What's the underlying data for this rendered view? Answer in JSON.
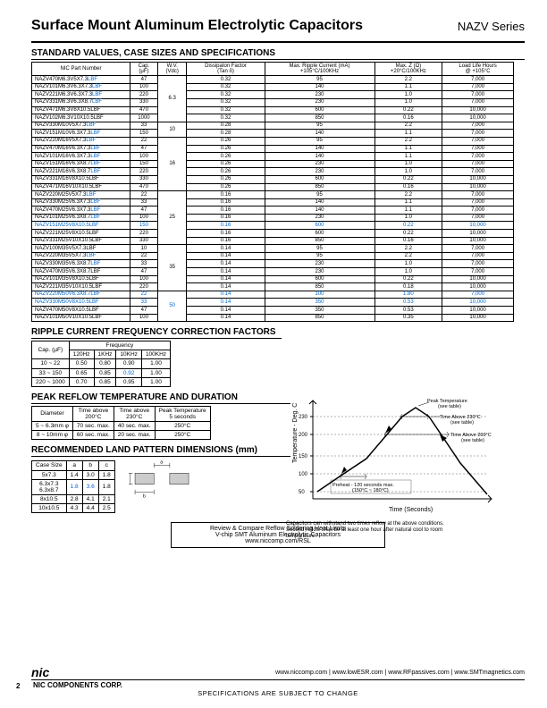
{
  "title": "Surface Mount Aluminum Electrolytic Capacitors",
  "series": "NAZV Series",
  "sections": {
    "standard": "STANDARD VALUES, CASE SIZES AND SPECIFICATIONS",
    "ripple": "RIPPLE CURRENT FREQUENCY CORRECTION FACTORS",
    "peak": "PEAK REFLOW TEMPERATURE AND DURATION",
    "land": "RECOMMENDED LAND PATTERN DIMENSIONS (mm)"
  },
  "main_table": {
    "headers": [
      "NIC Part Number",
      "Cap.\n(μF)",
      "W.V.\n(Vdc)",
      "Dissipaton Factor\n(Tan δ)",
      "Max. Ripple Current (mA)\n+105°C/100KHz",
      "Max. Z (Ω)\n+20°C/100KHz",
      "Load Life Hours\n@ +105°C"
    ],
    "rows": [
      {
        "p": "NAZV470M6.3V5X7.3",
        "s": "LBF",
        "c": [
          "47",
          "6.3",
          "0.32",
          "95",
          "2.2",
          "7,000"
        ],
        "blue": false
      },
      {
        "p": "NAZV101M6.3V6.3X7.3",
        "s": "LBF",
        "c": [
          "100",
          "",
          "0.32",
          "140",
          "1.1",
          "7,000"
        ],
        "blue": false
      },
      {
        "p": "NAZV221M6.3V6.3X7.3",
        "s": "LBF",
        "c": [
          "220",
          "",
          "0.32",
          "230",
          "1.0",
          "7,000"
        ],
        "blue": false
      },
      {
        "p": "NAZV331M6.3V6.3X8.7",
        "s": "LBF",
        "c": [
          "330",
          "",
          "0.32",
          "230",
          "1.0",
          "7,000"
        ],
        "blue": false
      },
      {
        "p": "NAZV471M6.3V8X10.5LBF",
        "s": "",
        "c": [
          "470",
          "",
          "0.32",
          "600",
          "0.22",
          "10,000"
        ],
        "blue": false
      },
      {
        "p": "NAZV102M6.3V10X10.5LBF",
        "s": "",
        "c": [
          "1000",
          "",
          "0.32",
          "850",
          "0.16",
          "10,000"
        ],
        "blue": false
      },
      {
        "p": "NAZV330M10V5X7.3",
        "s": "LBF",
        "c": [
          "33",
          "10",
          "0.28",
          "95",
          "2.2",
          "7,000"
        ],
        "blue": false
      },
      {
        "p": "NAZV151M10V6.3X7.3",
        "s": "LBF",
        "c": [
          "150",
          "",
          "0.28",
          "140",
          "1.1",
          "7,000"
        ],
        "blue": false
      },
      {
        "p": "NAZV220M16V5X7.3",
        "s": "LBF",
        "c": [
          "22",
          "16",
          "0.26",
          "95",
          "2.2",
          "7,000"
        ],
        "blue": false
      },
      {
        "p": "NAZV470M16V6.3X7.3",
        "s": "LBF",
        "c": [
          "47",
          "",
          "0.26",
          "140",
          "1.1",
          "7,000"
        ],
        "blue": false
      },
      {
        "p": "NAZV101M16V6.3X7.3",
        "s": "LBF",
        "c": [
          "100",
          "",
          "0.26",
          "140",
          "1.1",
          "7,000"
        ],
        "blue": false
      },
      {
        "p": "NAZV151M16V6.3X8.7",
        "s": "LBF",
        "c": [
          "150",
          "",
          "0.26",
          "230",
          "1.0",
          "7,000"
        ],
        "blue": false
      },
      {
        "p": "NAZV221M16V6.3X8.7",
        "s": "LBF",
        "c": [
          "220",
          "",
          "0.26",
          "230",
          "1.0",
          "7,000"
        ],
        "blue": false
      },
      {
        "p": "NAZV331M16V8X10.5LBF",
        "s": "",
        "c": [
          "330",
          "",
          "0.26",
          "600",
          "0.22",
          "10,000"
        ],
        "blue": false
      },
      {
        "p": "NAZV471M16V10X10.5LBF",
        "s": "",
        "c": [
          "470",
          "",
          "0.26",
          "850",
          "0.16",
          "10,000"
        ],
        "blue": false
      },
      {
        "p": "NAZV220M25V5X7.3",
        "s": "LBF",
        "c": [
          "22",
          "25",
          "0.16",
          "95",
          "2.2",
          "7,000"
        ],
        "blue": false
      },
      {
        "p": "NAZV330M25V6.3X7.3",
        "s": "LBF",
        "c": [
          "33",
          "",
          "0.16",
          "140",
          "1.1",
          "7,000"
        ],
        "blue": false
      },
      {
        "p": "NAZV470M25V6.3X7.3",
        "s": "LBF",
        "c": [
          "47",
          "",
          "0.16",
          "140",
          "1.1",
          "7,000"
        ],
        "blue": false
      },
      {
        "p": "NAZV101M25V6.3X8.7",
        "s": "LBF",
        "c": [
          "100",
          "",
          "0.16",
          "230",
          "1.0",
          "7,000"
        ],
        "blue": false
      },
      {
        "p": "NAZV151M25V8X10.5",
        "s": "LBF",
        "c": [
          "150",
          "",
          "0.16",
          "600",
          "0.22",
          "10,000"
        ],
        "blue": true
      },
      {
        "p": "NAZV221M25V8X10.5LBF",
        "s": "",
        "c": [
          "220",
          "",
          "0.16",
          "600",
          "0.22",
          "10,000"
        ],
        "blue": false
      },
      {
        "p": "NAZV331M25V10X10.5LBF",
        "s": "",
        "c": [
          "330",
          "",
          "0.16",
          "850",
          "0.16",
          "10,000"
        ],
        "blue": false
      },
      {
        "p": "NAZV100M35V5X7.3LBF",
        "s": "",
        "c": [
          "10",
          "35",
          "0.14",
          "95",
          "2.2",
          "7,000"
        ],
        "blue": false
      },
      {
        "p": "NAZV220M35V5X7.3",
        "s": "LBF",
        "c": [
          "22",
          "",
          "0.14",
          "95",
          "2.2",
          "7,000"
        ],
        "blue": false
      },
      {
        "p": "NAZV330M35V6.3X8.7",
        "s": "LBF",
        "c": [
          "33",
          "",
          "0.14",
          "230",
          "1.0",
          "7,000"
        ],
        "blue": false
      },
      {
        "p": "NAZV470M35V6.3X8.7LBF",
        "s": "",
        "c": [
          "47",
          "",
          "0.14",
          "230",
          "1.0",
          "7,000"
        ],
        "blue": false
      },
      {
        "p": "NAZV101M35V8X10.5LBF",
        "s": "",
        "c": [
          "100",
          "",
          "0.14",
          "600",
          "0.22",
          "10,000"
        ],
        "blue": false
      },
      {
        "p": "NAZV221M35V10X10.5LBF",
        "s": "",
        "c": [
          "220",
          "",
          "0.14",
          "850",
          "0.18",
          "10,000"
        ],
        "blue": false
      },
      {
        "p": "NAZV220M50V6.3X8.7",
        "s": "LBF",
        "c": [
          "22",
          "50",
          "0.14",
          "100",
          "1.80",
          "7,000"
        ],
        "blue": true
      },
      {
        "p": "NAZV330M50V8X10.5",
        "s": "LBF",
        "c": [
          "33",
          "",
          "0.14",
          "350",
          "0.53",
          "10,000"
        ],
        "blue": true
      },
      {
        "p": "NAZV470M50V8X10.5LBF",
        "s": "",
        "c": [
          "47",
          "",
          "0.14",
          "350",
          "0.53",
          "10,000"
        ],
        "blue": false
      },
      {
        "p": "NAZV101M50V10X10.5LBF",
        "s": "",
        "c": [
          "100",
          "",
          "0.14",
          "850",
          "0.35",
          "10,000"
        ],
        "blue": false
      }
    ],
    "wv_spans": {
      "0": [
        "6.3",
        6
      ],
      "6": [
        "10",
        2
      ],
      "8": [
        "16",
        7
      ],
      "15": [
        "25",
        7
      ],
      "22": [
        "35",
        6
      ],
      "28": [
        "50",
        4
      ]
    }
  },
  "ripple_table": {
    "headers": [
      "Cap. (μF)",
      "120Hz",
      "1KHz",
      "10KHz",
      "100KHz"
    ],
    "freq_header": "Frequency",
    "rows": [
      [
        "10 ~ 22",
        "0.50",
        "0.80",
        "0.90",
        "1.00"
      ],
      [
        "33 ~ 150",
        "0.65",
        "0.85",
        "0.92",
        "1.00"
      ],
      [
        "220 ~ 1000",
        "0.70",
        "0.85",
        "0.95",
        "1.00"
      ]
    ],
    "blue_cell": {
      "row": 1,
      "col": 3
    }
  },
  "peak_table": {
    "headers": [
      "Diameter",
      "Time above\n200°C",
      "Time above\n230°C",
      "Peak Temperature\n5 seconds"
    ],
    "rows": [
      [
        "5 ~ 6.3mm φ",
        "70 sec. max.",
        "40 sec. max.",
        "250°C"
      ],
      [
        "8 ~ 10mm φ",
        "60 sec. max.",
        "20 sec. max.",
        "250°C"
      ]
    ]
  },
  "land_table": {
    "headers": [
      "Case Size",
      "a",
      "b",
      "c"
    ],
    "rows": [
      {
        "cells": [
          "5x7.3",
          "1.4",
          "3.0",
          "1.8"
        ],
        "blue": []
      },
      {
        "cells": [
          "6.3x7.3\n6.3x8.7",
          "1.8",
          "3.6",
          "1.8"
        ],
        "blue": [
          1,
          2
        ]
      },
      {
        "cells": [
          "8x10.5",
          "2.8",
          "4.1",
          "2.1"
        ],
        "blue": []
      },
      {
        "cells": [
          "10x10.5",
          "4.3",
          "4.4",
          "2.5"
        ],
        "blue": []
      }
    ]
  },
  "chart": {
    "ylabel": "Temperature - Deg. C",
    "xlabel": "Time (Seconds)",
    "yticks": [
      "50",
      "100",
      "150",
      "200",
      "230"
    ],
    "labels": {
      "peak": "Peak Temperature\n(see table)",
      "above230": "Time Above 230°C\n(see table)",
      "above200": "Time Above 200°C\n(see table)",
      "preheat": "Preheat - 120 seconds max.\n(150°C ~ 180°C)"
    },
    "note": "Capacitors can withstand two times reflow at the above conditions.\nSecond reflow shall be at least one hour after natural cool to room\ntemperature."
  },
  "review_box": "Review & Compare Reflow Soldering Heat Limits\nV-chip SMT Aluminum Electrolytic Capacitors\nwww.niccomp.com/RSL",
  "footer": {
    "logo": "nic",
    "corp": "NIC COMPONENTS CORP.",
    "links": "www.niccomp.com  |  www.lowESR.com  |  www.RFpassives.com  |  www.SMTmagnetics.com",
    "spec": "SPECIFICATIONS ARE SUBJECT TO CHANGE",
    "page": "2"
  }
}
